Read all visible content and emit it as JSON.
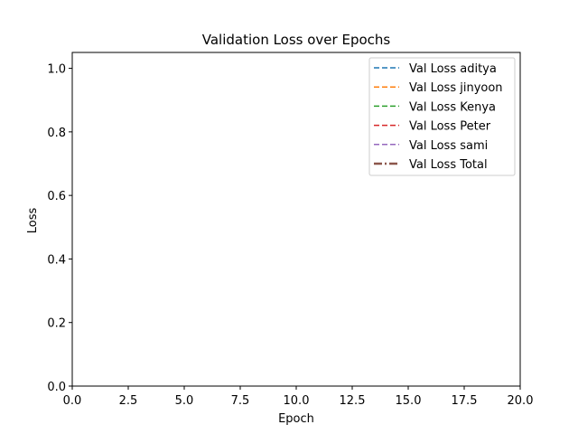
{
  "chart_data": {
    "type": "line",
    "title": "Validation Loss over Epochs",
    "xlabel": "Epoch",
    "ylabel": "Loss",
    "xlim": [
      0,
      20
    ],
    "ylim": [
      0,
      1.05
    ],
    "x_ticks": [
      "0.0",
      "2.5",
      "5.0",
      "7.5",
      "10.0",
      "12.5",
      "15.0",
      "17.5",
      "20.0"
    ],
    "y_ticks": [
      "0.0",
      "0.2",
      "0.4",
      "0.6",
      "0.8",
      "1.0"
    ],
    "grid": false,
    "legend_position": "top-right",
    "x": [],
    "series": [
      {
        "name": "Val Loss aditya",
        "color": "#1f77b4",
        "linestyle": "dashed",
        "values": []
      },
      {
        "name": "Val Loss jinyoon",
        "color": "#ff7f0e",
        "linestyle": "dashed",
        "values": []
      },
      {
        "name": "Val Loss Kenya",
        "color": "#2ca02c",
        "linestyle": "dashed",
        "values": []
      },
      {
        "name": "Val Loss Peter",
        "color": "#d62728",
        "linestyle": "dashed",
        "values": []
      },
      {
        "name": "Val Loss sami",
        "color": "#9467bd",
        "linestyle": "dashed",
        "values": []
      },
      {
        "name": "Val Loss Total",
        "color": "#8c564b",
        "linestyle": "dashdot",
        "values": []
      }
    ]
  }
}
